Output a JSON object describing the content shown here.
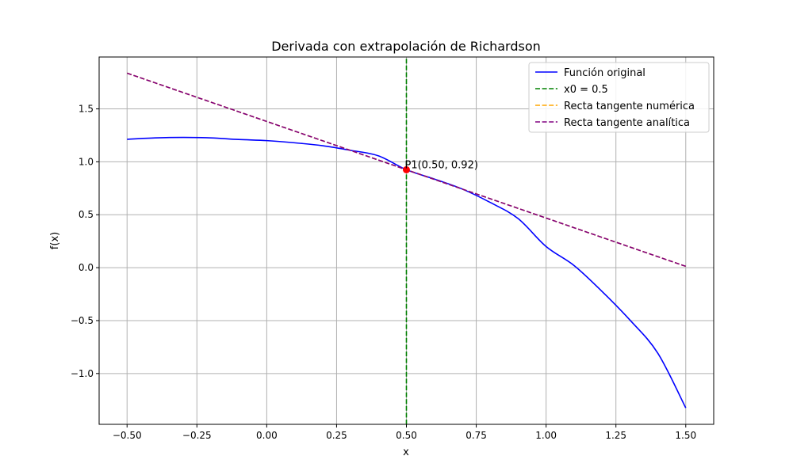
{
  "chart_data": {
    "type": "line",
    "title": "Derivada con extrapolación de Richardson",
    "xlabel": "x",
    "ylabel": "f(x)",
    "xlim": [
      -0.6,
      1.6
    ],
    "ylim": [
      -1.48,
      1.99
    ],
    "xticks": [
      -0.5,
      -0.25,
      0.0,
      0.25,
      0.5,
      0.75,
      1.0,
      1.25,
      1.5
    ],
    "xtick_labels": [
      "−0.50",
      "−0.25",
      "0.00",
      "0.25",
      "0.50",
      "0.75",
      "1.00",
      "1.25",
      "1.50"
    ],
    "yticks": [
      -1.0,
      -0.5,
      0.0,
      0.5,
      1.0,
      1.5
    ],
    "ytick_labels": [
      "−1.0",
      "−0.5",
      "0.0",
      "0.5",
      "1.0",
      "1.5"
    ],
    "grid": true,
    "legend_position": "top-right",
    "series": [
      {
        "name": "Función original",
        "color": "#0000ff",
        "style": "solid",
        "x": [
          -0.5,
          -0.4,
          -0.3,
          -0.2,
          -0.1,
          0.0,
          0.1,
          0.2,
          0.3,
          0.4,
          0.5,
          0.6,
          0.7,
          0.8,
          0.9,
          1.0,
          1.1,
          1.2,
          1.3,
          1.4,
          1.5
        ],
        "y": [
          1.2125,
          1.2256,
          1.2305,
          1.226,
          1.2105,
          1.2,
          1.1795,
          1.152,
          1.1085,
          1.056,
          0.925,
          0.837,
          0.7425,
          0.616,
          0.4635,
          0.2,
          0.0205,
          -0.224,
          -0.4945,
          -0.808,
          -1.325
        ]
      },
      {
        "name": "x0 = 0.5",
        "color": "#008000",
        "style": "dashed",
        "x": [
          0.5,
          0.5
        ],
        "y": [
          -1.48,
          1.99
        ]
      },
      {
        "name": "Recta tangente numérica",
        "color": "#ffa500",
        "style": "dashed",
        "x": [
          -0.5,
          1.5
        ],
        "y": [
          1.8375,
          0.0125
        ]
      },
      {
        "name": "Recta tangente analítica",
        "color": "#800080",
        "style": "dashed",
        "x": [
          -0.5,
          1.5
        ],
        "y": [
          1.8375,
          0.0125
        ]
      }
    ],
    "points": [
      {
        "x": 0.5,
        "y": 0.925,
        "color": "#ff0000",
        "label": "P1(0.50, 0.92)"
      }
    ]
  }
}
